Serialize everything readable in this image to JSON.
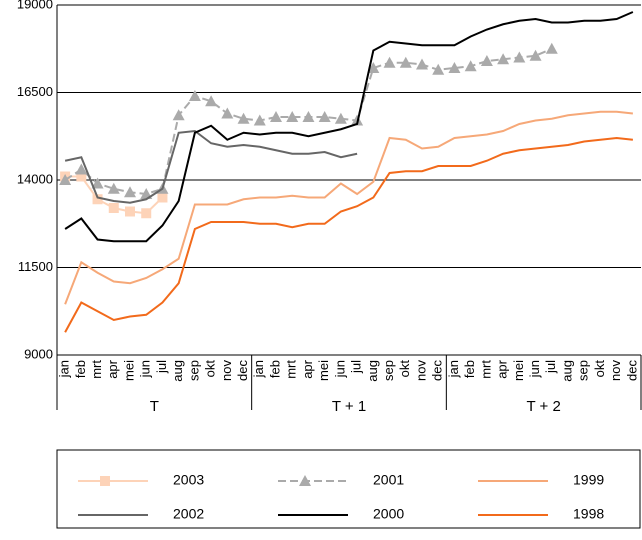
{
  "chart_data": {
    "type": "line",
    "categories": [
      "jan",
      "feb",
      "mrt",
      "apr",
      "mei",
      "jun",
      "jul",
      "aug",
      "sep",
      "okt",
      "nov",
      "dec",
      "jan",
      "feb",
      "mrt",
      "apr",
      "mei",
      "jun",
      "jul",
      "aug",
      "sep",
      "okt",
      "nov",
      "dec",
      "jan",
      "feb",
      "mrt",
      "apr",
      "mei",
      "jun",
      "jul",
      "aug",
      "sep",
      "okt",
      "nov",
      "dec"
    ],
    "groups": [
      "T",
      "T + 1",
      "T + 2"
    ],
    "ylim": [
      9000,
      19000
    ],
    "yticks": [
      9000,
      11500,
      14000,
      16500,
      19000
    ],
    "grid": true,
    "legend": "bottom",
    "series": [
      {
        "name": "2003",
        "color": "#fdd3b8",
        "marker": "square",
        "values": [
          14100,
          14100,
          13450,
          13200,
          13100,
          13050,
          13500,
          null,
          null,
          null,
          null,
          null,
          null,
          null,
          null,
          null,
          null,
          null,
          null,
          null,
          null,
          null,
          null,
          null,
          null,
          null,
          null,
          null,
          null,
          null,
          null,
          null,
          null,
          null,
          null,
          null
        ]
      },
      {
        "name": "2001",
        "color": "#aaaaaa",
        "marker": "triangle",
        "dashed": true,
        "values": [
          14000,
          14300,
          13900,
          13750,
          13650,
          13600,
          13750,
          15850,
          16400,
          16250,
          15900,
          15750,
          15700,
          15800,
          15800,
          15800,
          15800,
          15750,
          15700,
          17200,
          17350,
          17350,
          17300,
          17150,
          17200,
          17250,
          17400,
          17450,
          17500,
          17550,
          17750,
          null,
          null,
          null,
          null,
          null
        ]
      },
      {
        "name": "1999",
        "color": "#f6a878",
        "values": [
          10450,
          11650,
          11350,
          11100,
          11050,
          11200,
          11450,
          11750,
          13300,
          13300,
          13300,
          13450,
          13500,
          13500,
          13550,
          13500,
          13500,
          13900,
          13600,
          13950,
          15200,
          15150,
          14900,
          14950,
          15200,
          15250,
          15300,
          15400,
          15600,
          15700,
          15750,
          15850,
          15900,
          15950,
          15950,
          15900
        ]
      },
      {
        "name": "2002",
        "color": "#666666",
        "values": [
          14550,
          14650,
          13500,
          13400,
          13350,
          13450,
          13750,
          15350,
          15400,
          15050,
          14950,
          15000,
          14950,
          14850,
          14750,
          14750,
          14800,
          14650,
          14750,
          null,
          null,
          null,
          null,
          null,
          null,
          null,
          null,
          null,
          null,
          null,
          null,
          null,
          null,
          null,
          null,
          null
        ]
      },
      {
        "name": "2000",
        "color": "#000000",
        "values": [
          12600,
          12900,
          12300,
          12250,
          12250,
          12250,
          12700,
          13400,
          15350,
          15550,
          15150,
          15350,
          15300,
          15350,
          15350,
          15250,
          15350,
          15450,
          15600,
          17700,
          17950,
          17900,
          17850,
          17850,
          17850,
          18100,
          18300,
          18450,
          18550,
          18600,
          18500,
          18500,
          18550,
          18550,
          18600,
          18800
        ]
      },
      {
        "name": "1998",
        "color": "#f26a1b",
        "values": [
          9650,
          10500,
          10250,
          10000,
          10100,
          10150,
          10500,
          11050,
          12600,
          12800,
          12800,
          12800,
          12750,
          12750,
          12650,
          12750,
          12750,
          13100,
          13250,
          13500,
          14200,
          14250,
          14250,
          14400,
          14400,
          14400,
          14550,
          14750,
          14850,
          14900,
          14950,
          15000,
          15100,
          15150,
          15200,
          15150
        ]
      }
    ]
  }
}
